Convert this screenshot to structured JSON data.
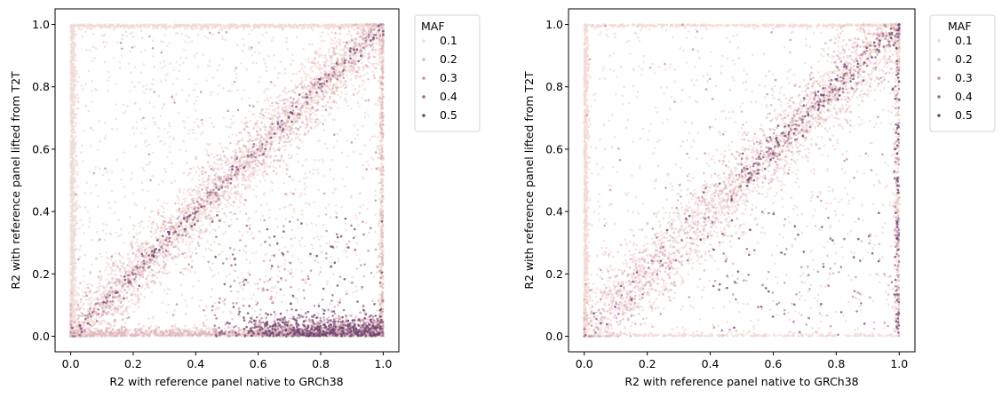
{
  "chart_data": [
    {
      "type": "scatter",
      "title": "",
      "xlabel": "R2 with reference panel native to GRCh38",
      "ylabel": "R2 with reference panel lifted from T2T",
      "xlim": [
        -0.05,
        1.05
      ],
      "ylim": [
        -0.05,
        1.05
      ],
      "xticks": [
        "0.0",
        "0.2",
        "0.4",
        "0.6",
        "0.8",
        "1.0"
      ],
      "yticks": [
        "0.0",
        "0.2",
        "0.4",
        "0.6",
        "0.8",
        "1.0"
      ],
      "grid": false,
      "hue_variable": "MAF",
      "legend": {
        "title": "MAF",
        "placement": "outside-upper-right",
        "entries": [
          "0.1",
          "0.2",
          "0.3",
          "0.4",
          "0.5"
        ],
        "colors": [
          "#f1dad6",
          "#dfb8bd",
          "#c293a6",
          "#9b6b8c",
          "#6e4570"
        ]
      },
      "structure": {
        "diagonal_band": "dense points along y = x",
        "bottom_edge": "dense cluster at y ≈ 0, darker (higher MAF) toward x ≈ 0.8–1.0",
        "left_edge": "dense column at x ≈ 0",
        "top_edge": "dense row at y ≈ 1.0",
        "right_edge": "dense column at x ≈ 1.0"
      }
    },
    {
      "type": "scatter",
      "title": "",
      "xlabel": "R2 with reference panel native to GRCh38",
      "ylabel": "R2 with reference panel lifted from T2T",
      "xlim": [
        -0.05,
        1.05
      ],
      "ylim": [
        -0.05,
        1.05
      ],
      "xticks": [
        "0.0",
        "0.2",
        "0.4",
        "0.6",
        "0.8",
        "1.0"
      ],
      "yticks": [
        "0.0",
        "0.2",
        "0.4",
        "0.6",
        "0.8",
        "1.0"
      ],
      "grid": false,
      "hue_variable": "MAF",
      "legend": {
        "title": "MAF",
        "placement": "outside-upper-right",
        "entries": [
          "0.1",
          "0.2",
          "0.3",
          "0.4",
          "0.5"
        ],
        "colors": [
          "#f1dad6",
          "#dfb8bd",
          "#c293a6",
          "#9b6b8c",
          "#6e4570"
        ]
      },
      "structure": {
        "diagonal_band": "dense points along y = x, darker near top-right",
        "bottom_edge": "sparse row at y ≈ 0",
        "left_edge": "dense column at x ≈ 0",
        "top_edge": "row at y ≈ 1.0",
        "right_edge": "column at x ≈ 1.0 with darker points"
      }
    }
  ]
}
